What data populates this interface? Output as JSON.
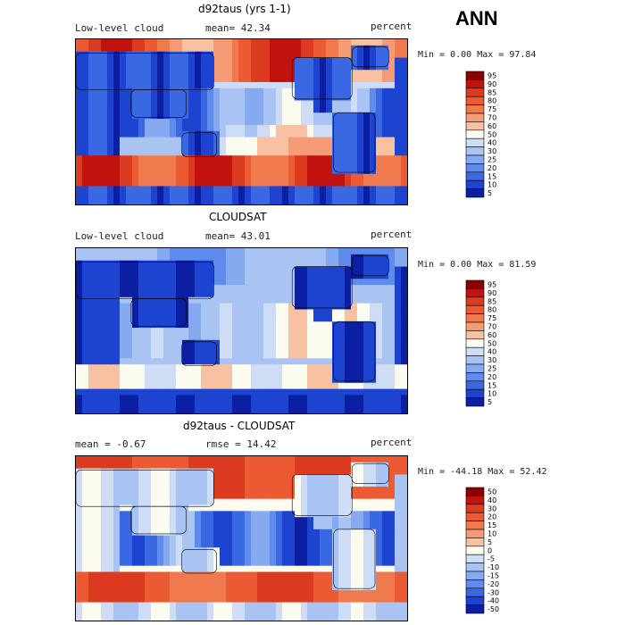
{
  "season": "ANN",
  "panels": [
    {
      "title": "d92taus (yrs 1-1)",
      "left_label": "Low-level cloud",
      "mean_label": "mean=  42.34",
      "right_label": "percent",
      "minmax": "Min =   0.00 Max =  97.84",
      "kind": "model"
    },
    {
      "title": "CLOUDSAT",
      "left_label": "Low-level cloud",
      "mean_label": "mean=  43.01",
      "right_label": "percent",
      "minmax": "Min =   0.00 Max =  81.59",
      "kind": "obs"
    },
    {
      "title": "d92taus - CLOUDSAT",
      "left_label": "mean =  -0.67",
      "mean_label": "rmse =  14.42",
      "right_label": "percent",
      "minmax": "Min = -44.18 Max =  52.42",
      "kind": "diff"
    }
  ],
  "chart_data": [
    {
      "type": "heatmap",
      "title": "d92taus (yrs 1-1)",
      "variable": "Low-level cloud",
      "units": "percent",
      "mean": 42.34,
      "min": 0.0,
      "max": 97.84,
      "colorbar_levels": [
        "95",
        "90",
        "85",
        "80",
        "75",
        "70",
        "60",
        "50",
        "40",
        "30",
        "25",
        "20",
        "15",
        "10",
        "5"
      ],
      "colorbar_colors": [
        "#8b0000",
        "#c1120e",
        "#dc3b20",
        "#eb5a32",
        "#f07a4e",
        "#f59b76",
        "#f8c1a2",
        "#fbfbf0",
        "#cfdcf5",
        "#a9c4f3",
        "#85aaf0",
        "#5f8bec",
        "#3a68e2",
        "#1c44d0",
        "#0b1fa3"
      ]
    },
    {
      "type": "heatmap",
      "title": "CLOUDSAT",
      "variable": "Low-level cloud",
      "units": "percent",
      "mean": 43.01,
      "min": 0.0,
      "max": 81.59,
      "colorbar_levels": [
        "95",
        "90",
        "85",
        "80",
        "75",
        "70",
        "60",
        "50",
        "40",
        "30",
        "25",
        "20",
        "15",
        "10",
        "5"
      ],
      "colorbar_colors": [
        "#8b0000",
        "#c1120e",
        "#dc3b20",
        "#eb5a32",
        "#f07a4e",
        "#f59b76",
        "#f8c1a2",
        "#fbfbf0",
        "#cfdcf5",
        "#a9c4f3",
        "#85aaf0",
        "#5f8bec",
        "#3a68e2",
        "#1c44d0",
        "#0b1fa3"
      ]
    },
    {
      "type": "heatmap",
      "title": "d92taus - CLOUDSAT",
      "units": "percent",
      "mean": -0.67,
      "rmse": 14.42,
      "min": -44.18,
      "max": 52.42,
      "colorbar_levels": [
        "50",
        "40",
        "30",
        "20",
        "15",
        "10",
        "5",
        "0",
        "-5",
        "-10",
        "-15",
        "-20",
        "-30",
        "-40",
        "-50"
      ],
      "colorbar_colors": [
        "#8b0000",
        "#c1120e",
        "#dc3b20",
        "#eb5a32",
        "#f07a4e",
        "#f59b76",
        "#f8c1a2",
        "#fbfbf0",
        "#cfdcf5",
        "#a9c4f3",
        "#85aaf0",
        "#5f8bec",
        "#3a68e2",
        "#1c44d0",
        "#0b1fa3"
      ]
    }
  ]
}
